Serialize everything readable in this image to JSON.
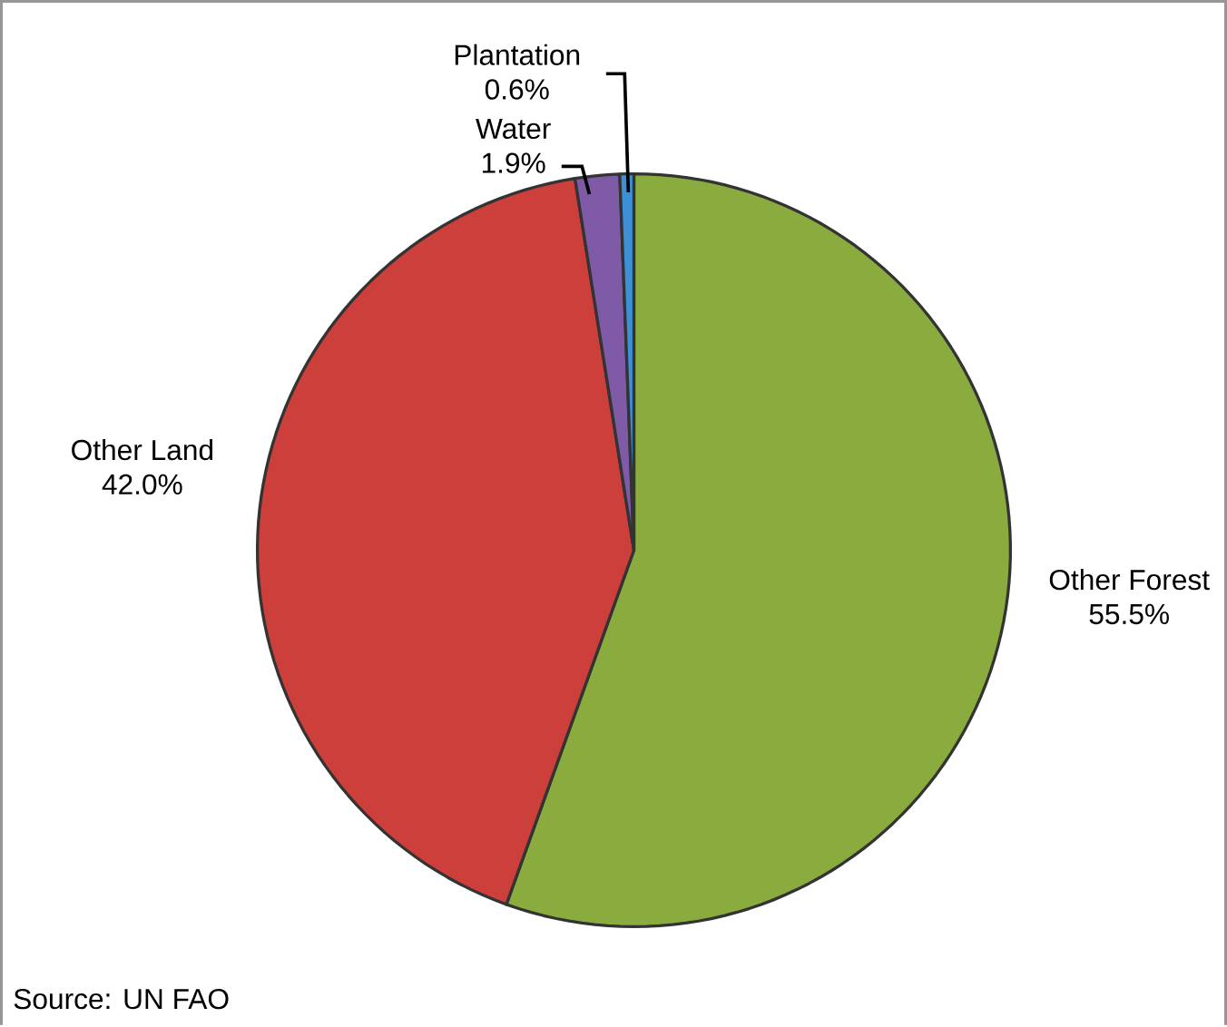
{
  "chart_data": {
    "type": "pie",
    "categories": [
      "Other Forest",
      "Other Land",
      "Water",
      "Plantation"
    ],
    "values": [
      55.5,
      42.0,
      1.9,
      0.6
    ],
    "colors": [
      "#8aac3f",
      "#cc3f3a",
      "#7f5aa6",
      "#3d8fd6"
    ],
    "value_labels": [
      "55.5%",
      "42.0%",
      "1.9%",
      "0.6%"
    ],
    "annotations": [
      "Source:  UN FAO"
    ]
  }
}
